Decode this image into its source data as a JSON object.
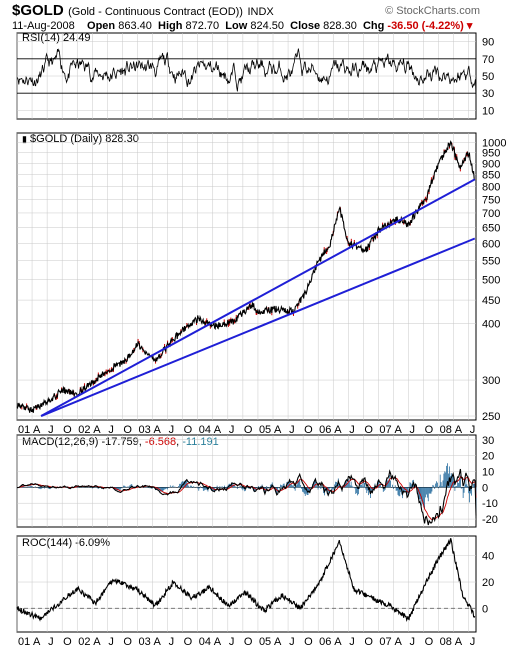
{
  "header": {
    "symbol": "$GOLD",
    "name": "(Gold - Continuous Contract (EOD))",
    "exchange": "INDX",
    "date": "11-Aug-2008",
    "open_label": "Open",
    "open": "863.40",
    "high_label": "High",
    "high": "872.70",
    "low_label": "Low",
    "low": "824.50",
    "close_label": "Close",
    "close": "828.30",
    "chg_label": "Chg",
    "chg": "-36.50 (-4.22%)",
    "watermark": "© StockCharts.com"
  },
  "colors": {
    "price": "#000000",
    "down_bar": "#cc0000",
    "trendline": "#1f1fd6",
    "macd_hist": "#2a6fa0",
    "macd_signal": "#cc0000",
    "grid": "#c8c8c8"
  },
  "chart_data": [
    {
      "type": "line",
      "panel": "rsi",
      "legend": "RSI(14) 24.49",
      "ylim": [
        0,
        100
      ],
      "yticks": [
        10,
        30,
        50,
        70,
        90
      ],
      "guides": [
        30,
        70
      ],
      "last_value": 24.49
    },
    {
      "type": "line",
      "panel": "price",
      "legend": "$GOLD (Daily) 828.30",
      "ylim": [
        245,
        1050
      ],
      "log_scale": true,
      "yticks": [
        250,
        300,
        400,
        450,
        500,
        550,
        600,
        650,
        700,
        750,
        800,
        850,
        900,
        950,
        1000
      ],
      "ytick_labels": [
        "250",
        "300",
        "400",
        "450",
        "500",
        "550",
        "600",
        "650",
        "700",
        "750",
        "800",
        "850",
        "900",
        "950",
        "1000"
      ],
      "series": [
        {
          "x": [
            2001.0,
            2001.25,
            2001.5,
            2001.75,
            2002.0,
            2002.3,
            2002.6,
            2002.8,
            2003.0,
            2003.1,
            2003.3,
            2003.6,
            2003.9,
            2004.0,
            2004.3,
            2004.6,
            2004.9,
            2005.0,
            2005.3,
            2005.6,
            2005.8,
            2006.0,
            2006.2,
            2006.35,
            2006.5,
            2006.8,
            2007.0,
            2007.3,
            2007.5,
            2007.8,
            2008.0,
            2008.2,
            2008.35,
            2008.5,
            2008.6
          ],
          "values": [
            265,
            257,
            268,
            285,
            280,
            300,
            320,
            330,
            360,
            350,
            330,
            370,
            400,
            410,
            395,
            405,
            440,
            425,
            430,
            425,
            470,
            545,
            600,
            715,
            600,
            580,
            640,
            680,
            660,
            760,
            900,
            1000,
            880,
            950,
            828
          ]
        }
      ],
      "trendlines": [
        {
          "x": [
            2001.4,
            2008.6
          ],
          "values": [
            250,
            830
          ]
        },
        {
          "x": [
            2001.4,
            2008.6
          ],
          "values": [
            250,
            615
          ]
        }
      ],
      "xtick_labels": [
        "01",
        "A",
        "J",
        "O",
        "02",
        "A",
        "J",
        "O",
        "03",
        "A",
        "J",
        "O",
        "04",
        "A",
        "J",
        "O",
        "05",
        "A",
        "J",
        "O",
        "06",
        "A",
        "J",
        "O",
        "07",
        "A",
        "J",
        "O",
        "08",
        "A",
        "J"
      ]
    },
    {
      "type": "line",
      "panel": "macd",
      "legend": [
        "MACD(12,26,9)",
        "-17.759",
        "-6.568",
        "-11.191"
      ],
      "ylim": [
        -25,
        33
      ],
      "yticks": [
        -20,
        -10,
        0,
        10,
        20,
        30
      ],
      "ytick_labels": [
        "-20",
        "-10",
        "0",
        "10",
        "20",
        "30"
      ],
      "last_values": {
        "macd": -17.759,
        "signal": -6.568,
        "histogram": -11.191
      }
    },
    {
      "type": "line",
      "panel": "roc",
      "legend": "ROC(144) -6.09%",
      "ylim": [
        -18,
        55
      ],
      "yticks": [
        0,
        20,
        40
      ],
      "ytick_labels": [
        "0",
        "20",
        "40"
      ],
      "series": [
        {
          "x": [
            2001.0,
            2001.4,
            2001.8,
            2002.0,
            2002.3,
            2002.6,
            2003.0,
            2003.3,
            2003.6,
            2003.9,
            2004.2,
            2004.5,
            2004.8,
            2005.1,
            2005.4,
            2005.7,
            2006.0,
            2006.35,
            2006.6,
            2006.9,
            2007.2,
            2007.5,
            2007.8,
            2008.0,
            2008.2,
            2008.4,
            2008.6
          ],
          "values": [
            0,
            -8,
            8,
            15,
            4,
            22,
            14,
            2,
            20,
            8,
            16,
            2,
            12,
            -2,
            10,
            0,
            18,
            50,
            14,
            8,
            2,
            -8,
            20,
            38,
            52,
            10,
            -6
          ]
        }
      ],
      "xtick_labels": [
        "01",
        "A",
        "J",
        "O",
        "02",
        "A",
        "J",
        "O",
        "03",
        "A",
        "J",
        "O",
        "04",
        "A",
        "J",
        "O",
        "05",
        "A",
        "J",
        "O",
        "06",
        "A",
        "J",
        "O",
        "07",
        "A",
        "J",
        "O",
        "08",
        "A",
        "J"
      ]
    }
  ]
}
